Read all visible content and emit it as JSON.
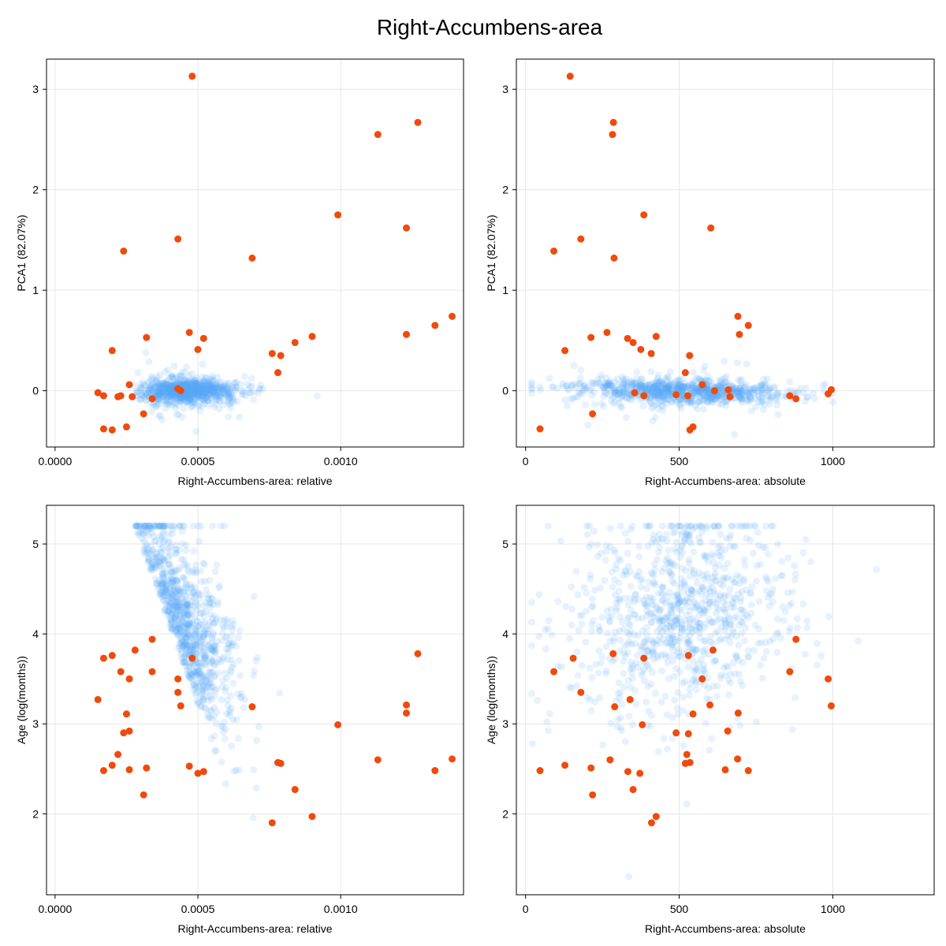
{
  "title": "Right-Accumbens-area",
  "colors": {
    "background_points": "#5aa8f5",
    "background_alpha": 0.15,
    "highlight_points": "#f04a0c",
    "grid": "#e6e6e6"
  },
  "chart_data": [
    {
      "type": "scatter",
      "xlabel": "Right-Accumbens-area: relative",
      "ylabel": "PCA1 (82.07%)",
      "xlim": [
        -3e-05,
        0.00143
      ],
      "ylim": [
        -0.56,
        3.3
      ],
      "xticks": [
        0,
        0.0005,
        0.001
      ],
      "xtick_labels": [
        "0.0000",
        "0.0005",
        "0.0010"
      ],
      "yticks": [
        0,
        1,
        2,
        3
      ],
      "ytick_labels": [
        "0",
        "1",
        "2",
        "3"
      ],
      "grid": true,
      "highlight": {
        "x": [
          0.00048,
          0.00127,
          0.00113,
          0.00099,
          0.00123,
          0.00024,
          0.00043,
          0.00069,
          0.00139,
          0.00133,
          0.00047,
          0.00123,
          0.00032,
          0.0009,
          0.00052,
          0.00084,
          0.0002,
          0.0005,
          0.00076,
          0.00079,
          0.00078,
          0.00026,
          0.00043,
          0.00044,
          0.00015,
          0.00017,
          0.00022,
          0.00023,
          0.00027,
          0.00034,
          0.00031,
          0.00017,
          0.0002,
          0.00025
        ],
        "y": [
          3.13,
          2.67,
          2.55,
          1.75,
          1.62,
          1.39,
          1.51,
          1.32,
          0.74,
          0.65,
          0.58,
          0.56,
          0.53,
          0.54,
          0.52,
          0.48,
          0.4,
          0.41,
          0.37,
          0.35,
          0.18,
          0.06,
          0.02,
          0.0,
          -0.02,
          -0.05,
          -0.06,
          -0.05,
          -0.06,
          -0.08,
          -0.23,
          -0.38,
          -0.39,
          -0.36
        ]
      }
    },
    {
      "type": "scatter",
      "xlabel": "Right-Accumbens-area: absolute",
      "ylabel": "PCA1 (82.07%)",
      "xlim": [
        -30,
        1330
      ],
      "ylim": [
        -0.56,
        3.3
      ],
      "xticks": [
        0,
        500,
        1000
      ],
      "xtick_labels": [
        "0",
        "500",
        "1000"
      ],
      "yticks": [
        0,
        1,
        2,
        3
      ],
      "ytick_labels": [
        "0",
        "1",
        "2",
        "3"
      ],
      "grid": true,
      "highlight": {
        "x": [
          145,
          286,
          283,
          385,
          603,
          92,
          180,
          288,
          691,
          725,
          265,
          696,
          213,
          425,
          332,
          350,
          128,
          375,
          409,
          534,
          520,
          575,
          660,
          615,
          665,
          860,
          880,
          985,
          995,
          355,
          385,
          490,
          528,
          218,
          47,
          545,
          535
        ],
        "y": [
          3.13,
          2.67,
          2.55,
          1.75,
          1.62,
          1.39,
          1.51,
          1.32,
          0.74,
          0.65,
          0.58,
          0.56,
          0.53,
          0.54,
          0.52,
          0.48,
          0.4,
          0.41,
          0.37,
          0.35,
          0.18,
          0.06,
          0.01,
          0.0,
          -0.06,
          -0.05,
          -0.08,
          -0.03,
          0.01,
          -0.02,
          -0.05,
          -0.04,
          -0.05,
          -0.23,
          -0.38,
          -0.36,
          -0.39
        ]
      }
    },
    {
      "type": "scatter",
      "xlabel": "Right-Accumbens-area: relative",
      "ylabel": "Age (log(months))",
      "xlim": [
        -3e-05,
        0.00143
      ],
      "ylim": [
        1.1,
        5.43
      ],
      "xticks": [
        0,
        0.0005,
        0.001
      ],
      "xtick_labels": [
        "0.0000",
        "0.0005",
        "0.0010"
      ],
      "yticks": [
        2,
        3,
        4,
        5
      ],
      "ytick_labels": [
        "2",
        "3",
        "4",
        "5"
      ],
      "grid": true,
      "highlight": {
        "x": [
          0.00034,
          0.00028,
          0.00017,
          0.0002,
          0.00048,
          0.00127,
          0.00023,
          0.00034,
          0.00026,
          0.00043,
          0.00015,
          0.00043,
          0.00044,
          0.00123,
          0.00123,
          0.00025,
          0.00069,
          0.00099,
          0.00024,
          0.00026,
          0.00022,
          0.00113,
          0.00139,
          0.00079,
          0.00078,
          0.00047,
          0.00032,
          0.0002,
          0.00017,
          0.00026,
          0.00133,
          0.00052,
          0.0005,
          0.00084,
          0.00031,
          0.0009,
          0.00076
        ],
        "y": [
          3.94,
          3.82,
          3.73,
          3.76,
          3.73,
          3.78,
          3.58,
          3.58,
          3.5,
          3.5,
          3.27,
          3.35,
          3.2,
          3.21,
          3.12,
          3.11,
          3.19,
          2.99,
          2.9,
          2.92,
          2.66,
          2.6,
          2.61,
          2.56,
          2.57,
          2.53,
          2.51,
          2.54,
          2.48,
          2.49,
          2.48,
          2.47,
          2.45,
          2.27,
          2.21,
          1.97,
          1.9
        ]
      }
    },
    {
      "type": "scatter",
      "xlabel": "Right-Accumbens-area: absolute",
      "ylabel": "Age (log(months))",
      "xlim": [
        -30,
        1330
      ],
      "ylim": [
        1.1,
        5.43
      ],
      "xticks": [
        0,
        500,
        1000
      ],
      "xtick_labels": [
        "0",
        "500",
        "1000"
      ],
      "yticks": [
        2,
        3,
        4,
        5
      ],
      "ytick_labels": [
        "2",
        "3",
        "4",
        "5"
      ],
      "grid": true,
      "highlight": {
        "x": [
          880,
          610,
          285,
          385,
          530,
          92,
          155,
          860,
          985,
          575,
          180,
          340,
          600,
          290,
          995,
          545,
          692,
          380,
          490,
          530,
          658,
          525,
          275,
          690,
          535,
          520,
          213,
          128,
          47,
          333,
          372,
          725,
          650,
          218,
          350,
          425,
          410
        ],
        "y": [
          3.94,
          3.82,
          3.78,
          3.73,
          3.76,
          3.58,
          3.73,
          3.58,
          3.5,
          3.5,
          3.35,
          3.27,
          3.21,
          3.19,
          3.2,
          3.11,
          3.12,
          2.99,
          2.9,
          2.89,
          2.92,
          2.66,
          2.6,
          2.61,
          2.57,
          2.56,
          2.51,
          2.54,
          2.48,
          2.47,
          2.45,
          2.48,
          2.49,
          2.21,
          2.27,
          1.97,
          1.9
        ]
      }
    }
  ]
}
